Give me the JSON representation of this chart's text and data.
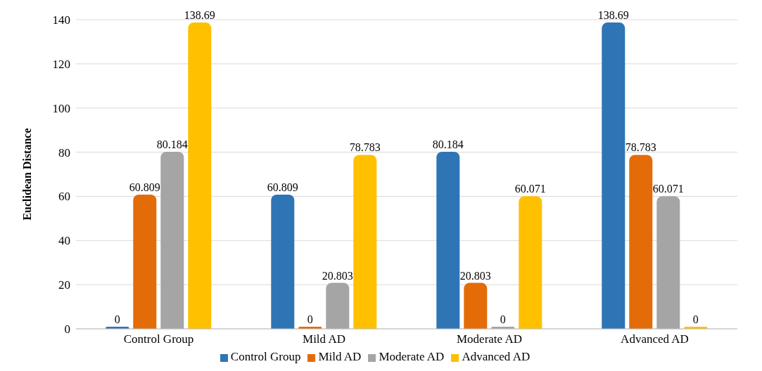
{
  "chart_data": {
    "type": "bar",
    "ylabel": "Euclidean Distance",
    "categories": [
      "Control Group",
      "Mild AD",
      "Moderate AD",
      "Advanced AD"
    ],
    "series": [
      {
        "name": "Control Group",
        "color": "#2e75b6",
        "values": [
          0,
          60.809,
          80.184,
          138.69
        ]
      },
      {
        "name": "Mild AD",
        "color": "#e36c09",
        "values": [
          60.809,
          0,
          20.803,
          78.783
        ]
      },
      {
        "name": "Moderate AD",
        "color": "#a5a5a5",
        "values": [
          80.184,
          20.803,
          0,
          60.071
        ]
      },
      {
        "name": "Advanced AD",
        "color": "#ffc000",
        "values": [
          138.69,
          78.783,
          60.071,
          0
        ]
      }
    ],
    "ylim": [
      0,
      140
    ],
    "yticks": [
      0,
      20,
      40,
      60,
      80,
      100,
      120,
      140
    ],
    "grid": "y",
    "legend": "bottom",
    "data_labels": true
  }
}
